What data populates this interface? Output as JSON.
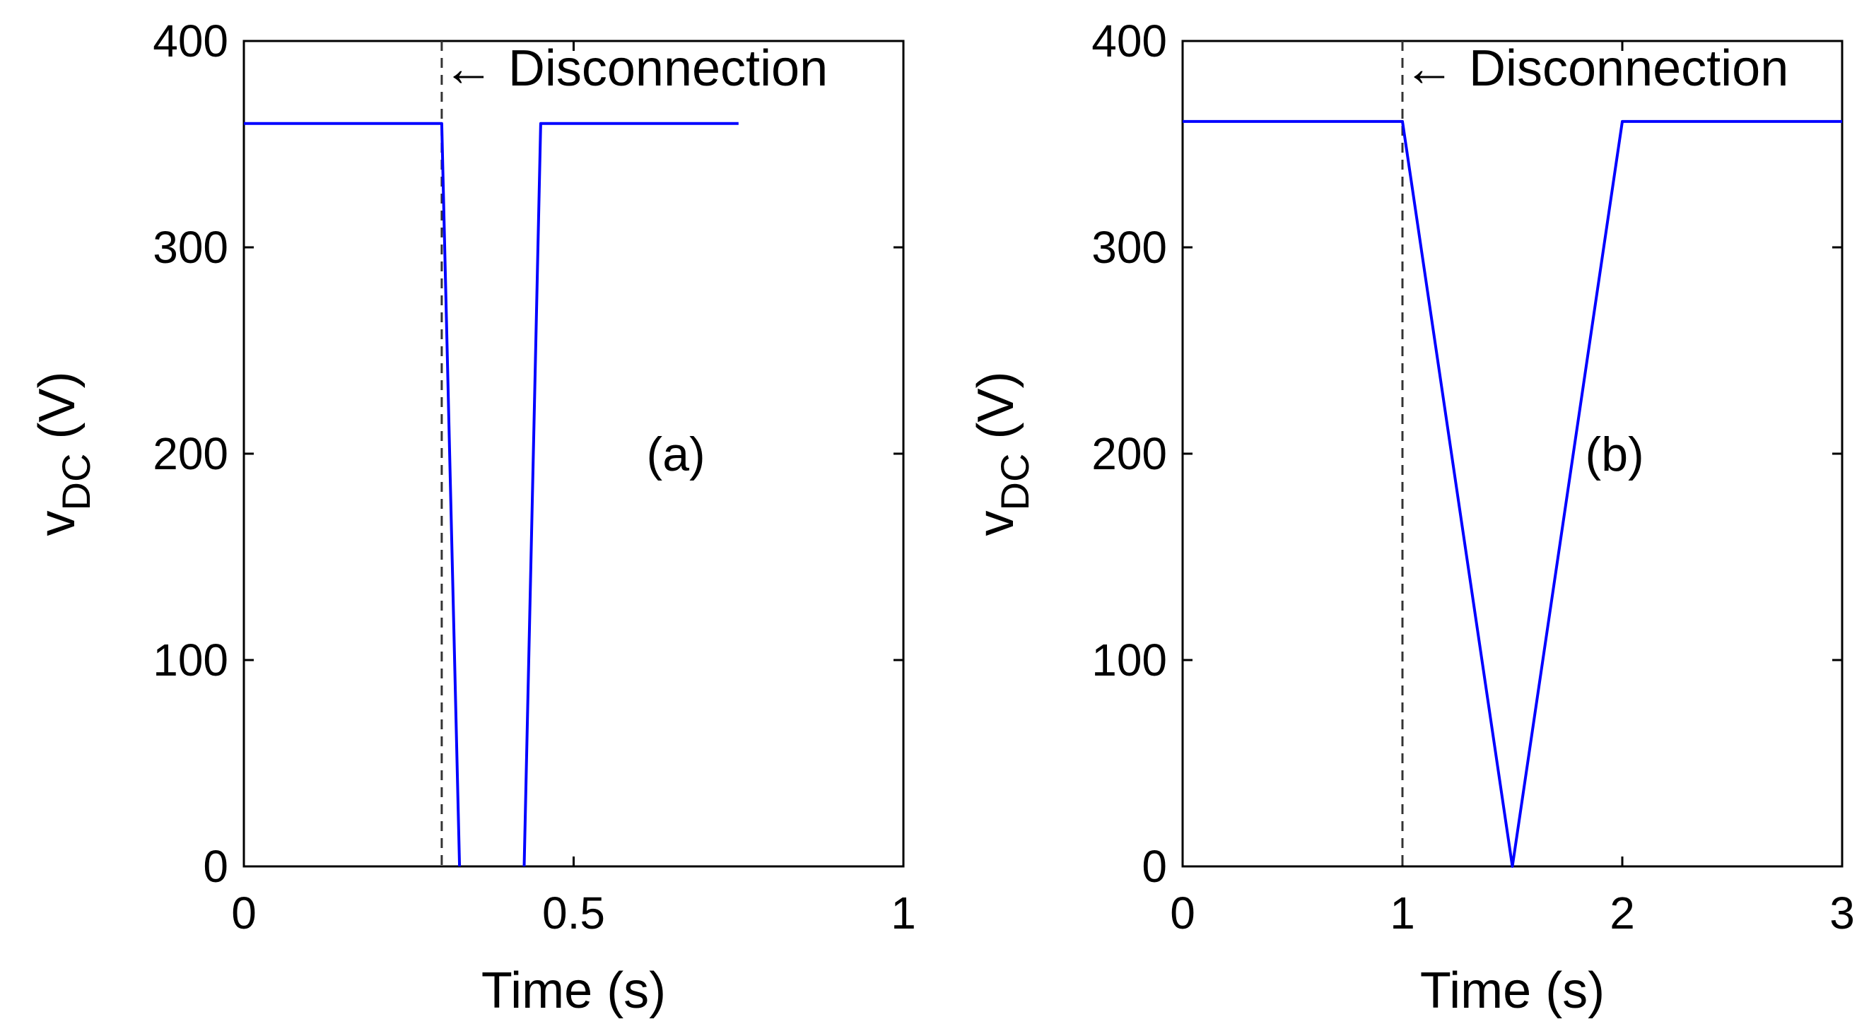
{
  "chart_data": [
    {
      "type": "line",
      "panel_label": "(a)",
      "xlabel": "Time (s)",
      "ylabel_main": "v",
      "ylabel_sub": "DC",
      "ylabel_unit": " (V)",
      "xlim": [
        0,
        1
      ],
      "ylim": [
        0,
        400
      ],
      "xticks": [
        0,
        0.5,
        1
      ],
      "xtick_labels": [
        "0",
        "0.5",
        "1"
      ],
      "yticks": [
        0,
        100,
        200,
        300,
        400
      ],
      "ytick_labels": [
        "0",
        "100",
        "200",
        "300",
        "400"
      ],
      "grid": false,
      "series": [
        {
          "name": "v_DC",
          "color": "#0000ff",
          "x": [
            0,
            0.3,
            0.327,
            0.327,
            0.425,
            0.425,
            0.45,
            0.75
          ],
          "y": [
            360,
            360,
            0,
            null,
            null,
            0,
            360,
            360
          ]
        }
      ],
      "vline": {
        "x": 0.3,
        "style": "dashed",
        "color": "#333333"
      },
      "annotation": {
        "text": "← Disconnection",
        "x": 0.3,
        "y": 375
      }
    },
    {
      "type": "line",
      "panel_label": "(b)",
      "xlabel": "Time (s)",
      "ylabel_main": "v",
      "ylabel_sub": "DC",
      "ylabel_unit": " (V)",
      "xlim": [
        0,
        3
      ],
      "ylim": [
        0,
        400
      ],
      "xticks": [
        0,
        1,
        2,
        3
      ],
      "xtick_labels": [
        "0",
        "1",
        "2",
        "3"
      ],
      "yticks": [
        0,
        100,
        200,
        300,
        400
      ],
      "ytick_labels": [
        "0",
        "100",
        "200",
        "300",
        "400"
      ],
      "grid": false,
      "series": [
        {
          "name": "v_DC",
          "color": "#0000ff",
          "x": [
            0,
            1,
            1.5,
            2,
            3
          ],
          "y": [
            361,
            361,
            0,
            361,
            361
          ]
        }
      ],
      "vline": {
        "x": 1,
        "style": "dashed",
        "color": "#333333"
      },
      "annotation": {
        "text": "← Disconnection",
        "x": 1,
        "y": 375
      }
    }
  ]
}
